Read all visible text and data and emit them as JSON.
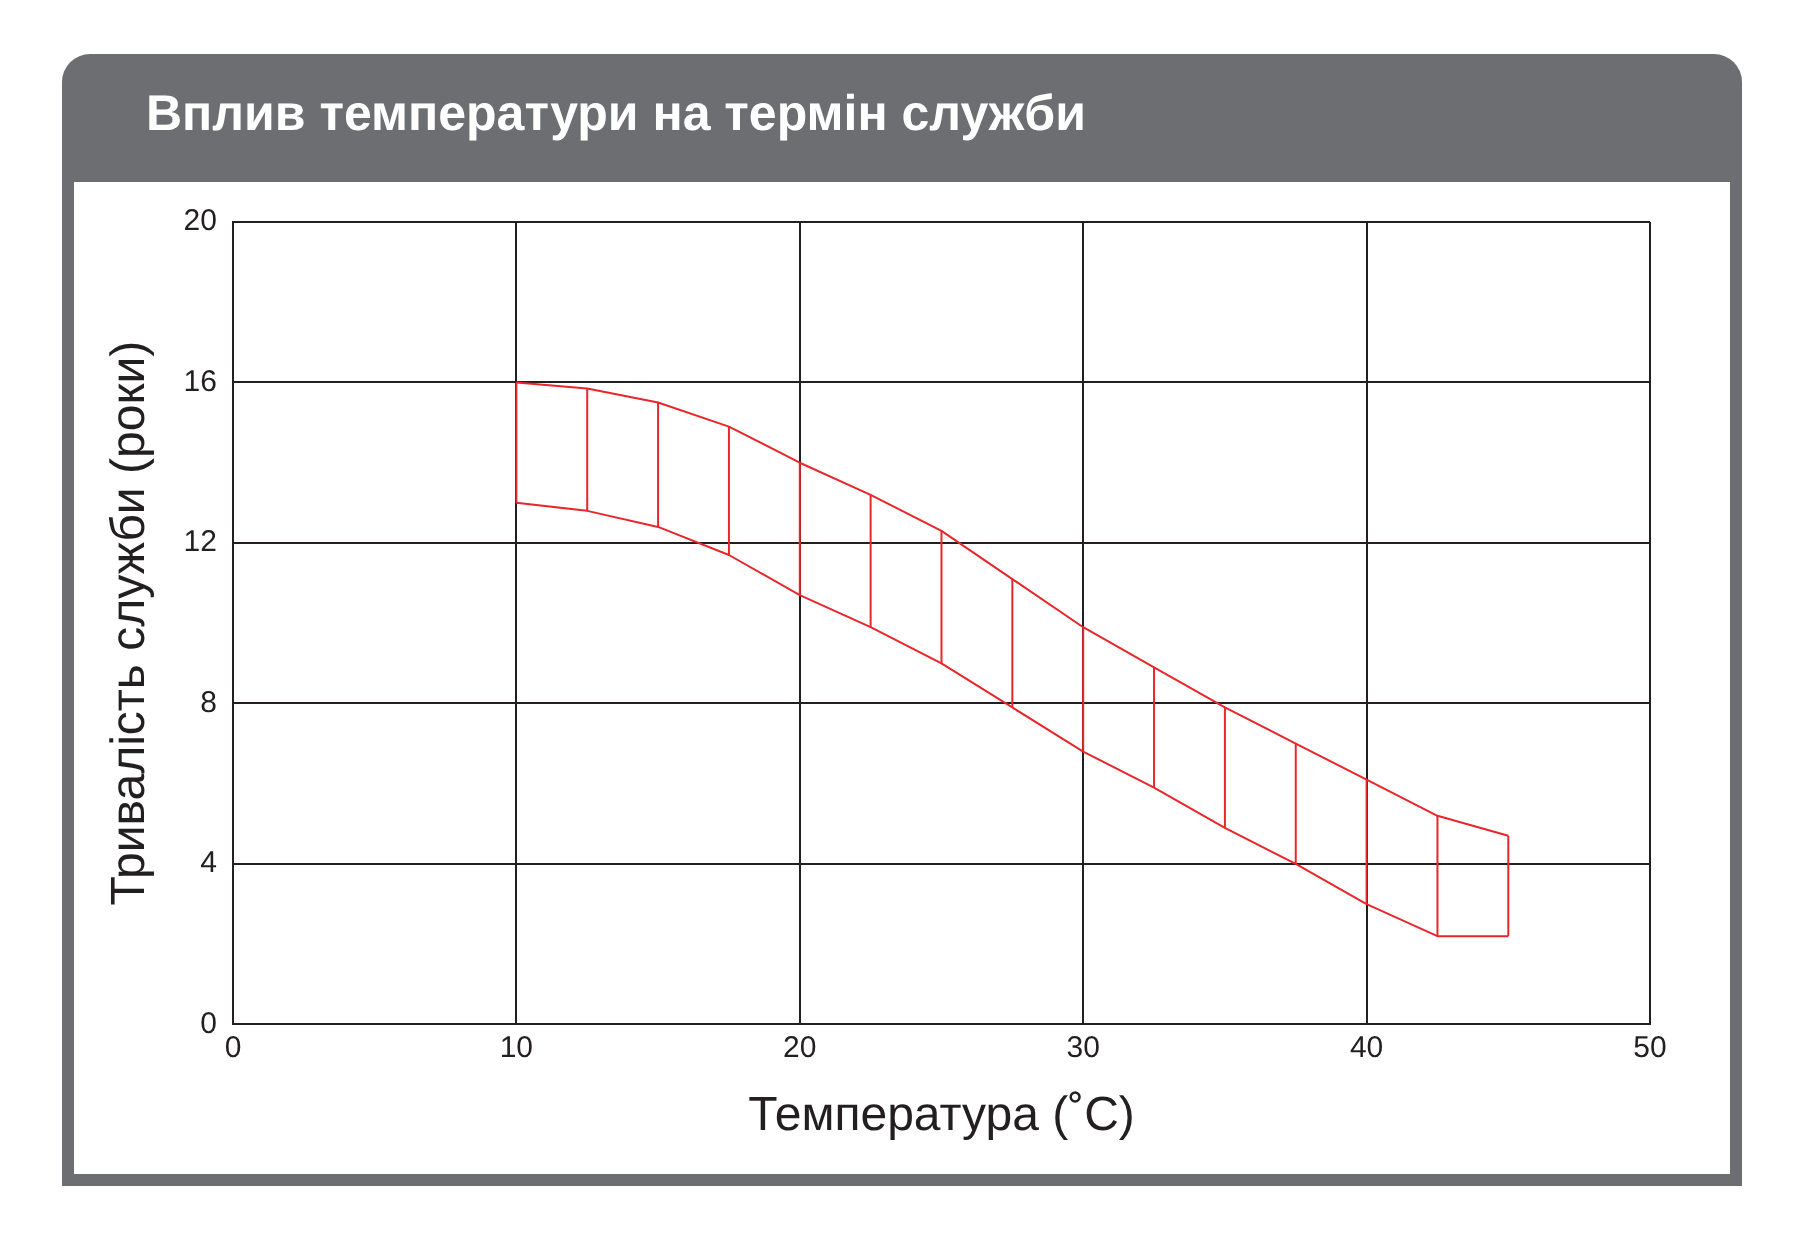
{
  "chart_data": {
    "type": "line",
    "title": "Вплив температури на термін служби",
    "xlabel": "Температура (˚C)",
    "ylabel": "Тривалість служби (роки)",
    "x": [
      10,
      12.5,
      15,
      17.5,
      20,
      22.5,
      25,
      27.5,
      30,
      32.5,
      35,
      37.5,
      40,
      42.5,
      45
    ],
    "series": [
      {
        "color": "#e8262b",
        "values": [
          16.0,
          15.85,
          15.5,
          14.9,
          14.0,
          13.2,
          12.3,
          11.1,
          9.9,
          8.9,
          7.9,
          7.0,
          6.1,
          5.2,
          4.7
        ]
      },
      {
        "color": "#e8262b",
        "values": [
          13.0,
          12.8,
          12.4,
          11.7,
          10.7,
          9.9,
          9.0,
          7.9,
          6.8,
          5.9,
          4.9,
          4.0,
          3.0,
          2.2,
          2.2
        ],
        "errors": [
          [
            13.0,
            16.0
          ],
          [
            12.8,
            15.85
          ],
          [
            12.4,
            15.5
          ],
          [
            11.7,
            14.9
          ],
          [
            10.7,
            14.0
          ],
          [
            9.9,
            13.2
          ],
          [
            9.0,
            12.3
          ],
          [
            7.9,
            11.1
          ],
          [
            6.8,
            9.9
          ],
          [
            5.9,
            8.9
          ],
          [
            4.9,
            7.9
          ],
          [
            4.0,
            7.0
          ],
          [
            3.0,
            6.1
          ],
          [
            2.2,
            5.2
          ],
          [
            2.2,
            4.7
          ]
        ]
      }
    ],
    "xlim": [
      0,
      50
    ],
    "xticks": [
      0,
      10,
      20,
      30,
      40,
      50
    ],
    "ylim": [
      0,
      20
    ],
    "yticks": [
      0,
      4,
      8,
      12,
      16,
      20
    ],
    "grid": true,
    "legend": false,
    "marker": "none",
    "line_style": "solid"
  }
}
